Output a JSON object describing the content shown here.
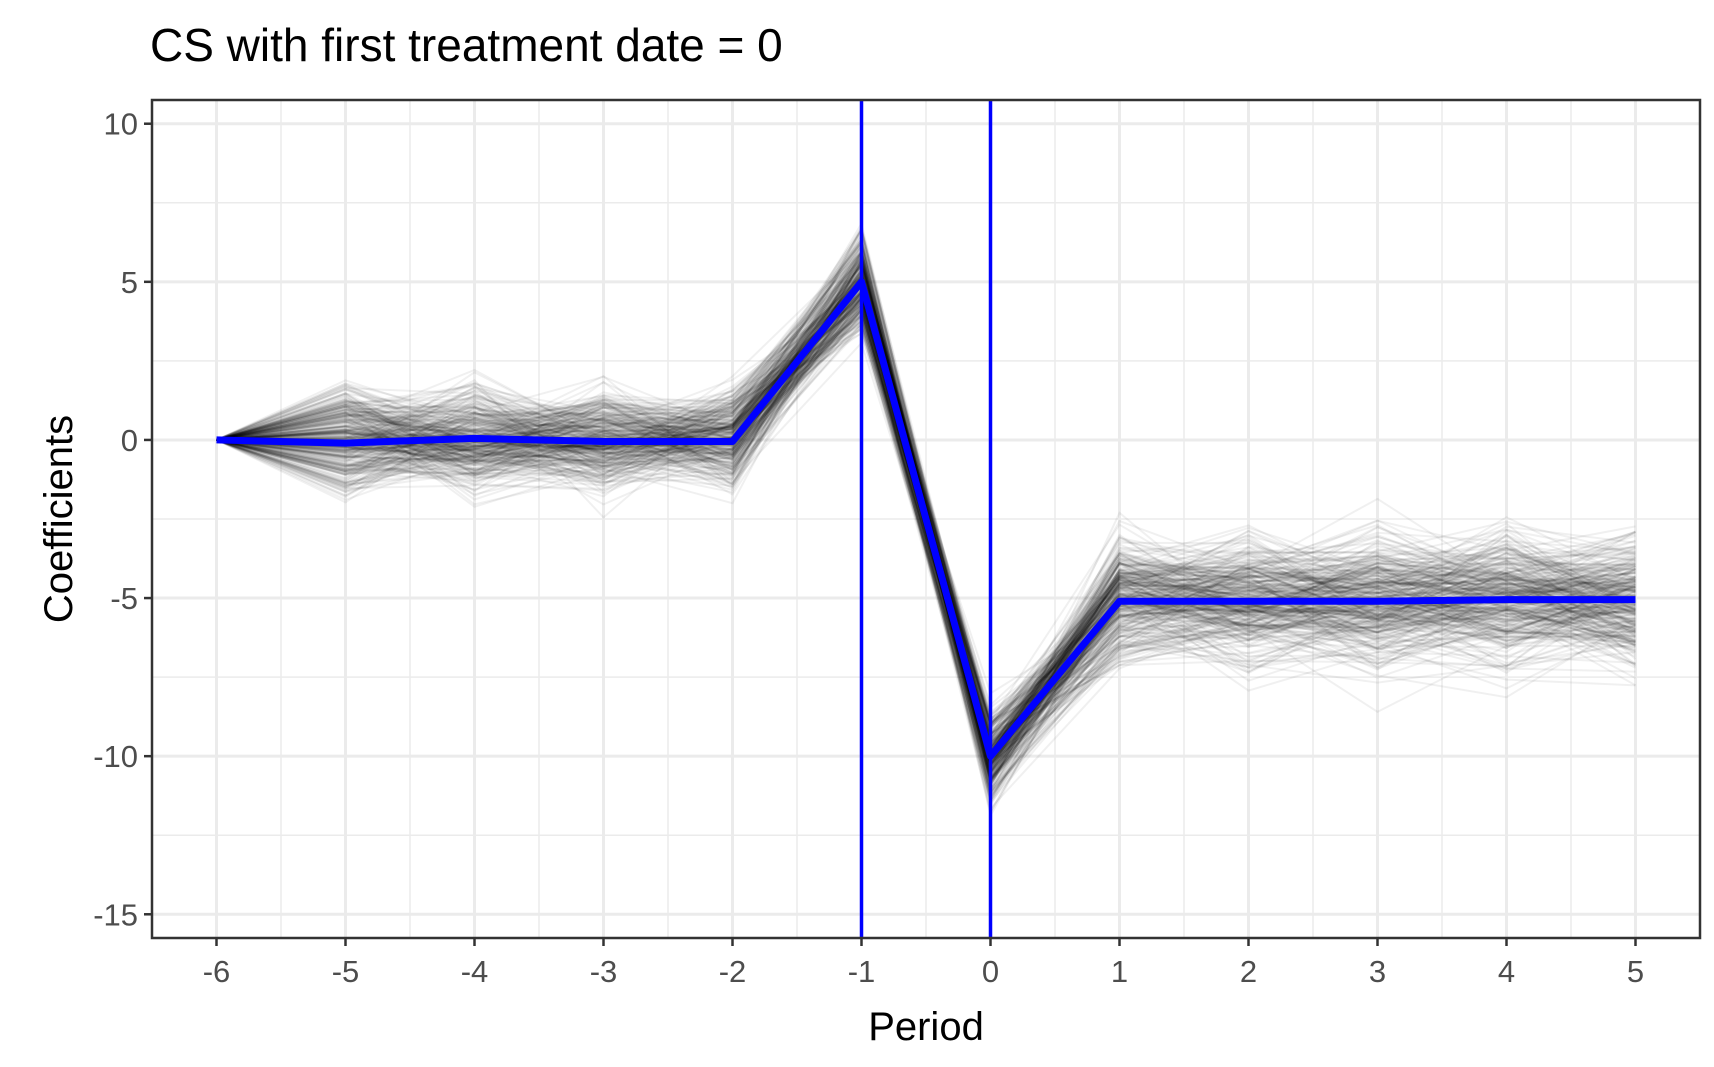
{
  "chart_data": {
    "type": "line",
    "title": "CS with first treatment date = 0",
    "xlabel": "Period",
    "ylabel": "Coefficients",
    "x": [
      -6,
      -5,
      -4,
      -3,
      -2,
      -1,
      0,
      1,
      2,
      3,
      4,
      5
    ],
    "xlim": [
      -6.5,
      5.5
    ],
    "ylim": [
      -15.75,
      10.75
    ],
    "x_ticks": [
      "-6",
      "-5",
      "-4",
      "-3",
      "-2",
      "-1",
      "0",
      "1",
      "2",
      "3",
      "4",
      "5"
    ],
    "y_ticks": [
      "10",
      "5",
      "0",
      "-5",
      "-10",
      "-15"
    ],
    "y_tick_values": [
      10,
      5,
      0,
      -5,
      -10,
      -15
    ],
    "grid": true,
    "vertical_reference_lines": [
      -1,
      0
    ],
    "series": [
      {
        "values": [
          0,
          -0.1,
          0.05,
          -0.05,
          -0.05,
          5,
          -10,
          -5.1,
          -5.1,
          -5.1,
          -5.05,
          -5.05
        ],
        "color": "#0000ff"
      }
    ],
    "simulation_band": {
      "description_lines": 1000,
      "center": [
        0,
        0,
        0,
        0,
        0,
        5,
        -10,
        -5,
        -5,
        -5,
        -5,
        -5
      ],
      "spread": [
        0,
        1.6,
        1.5,
        1.5,
        1.4,
        1.4,
        1.3,
        1.5,
        1.6,
        1.6,
        1.6,
        1.6
      ],
      "color": "#000000"
    }
  },
  "colors": {
    "accent_line": "#0000ff",
    "band": "#000000",
    "grid": "#ebebeb",
    "panel_border": "#333333"
  }
}
